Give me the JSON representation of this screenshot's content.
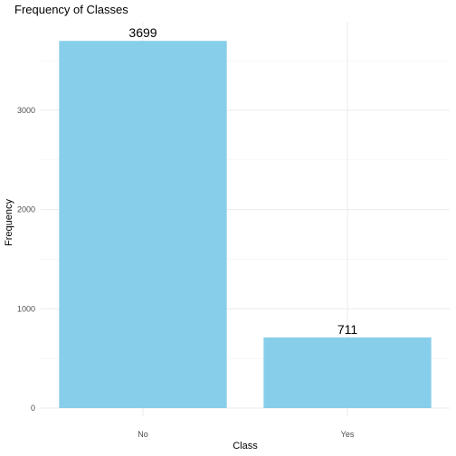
{
  "chart_data": {
    "type": "bar",
    "title": "Frequency of Classes",
    "xlabel": "Class",
    "ylabel": "Frequency",
    "categories": [
      "No",
      "Yes"
    ],
    "values": [
      3699,
      711
    ],
    "data_labels": [
      "3699",
      "711"
    ],
    "yticks": [
      0,
      1000,
      2000,
      3000
    ],
    "ylim": [
      0,
      3884
    ],
    "grid": true,
    "legend": "none",
    "bar_color": "#87CEEB"
  }
}
